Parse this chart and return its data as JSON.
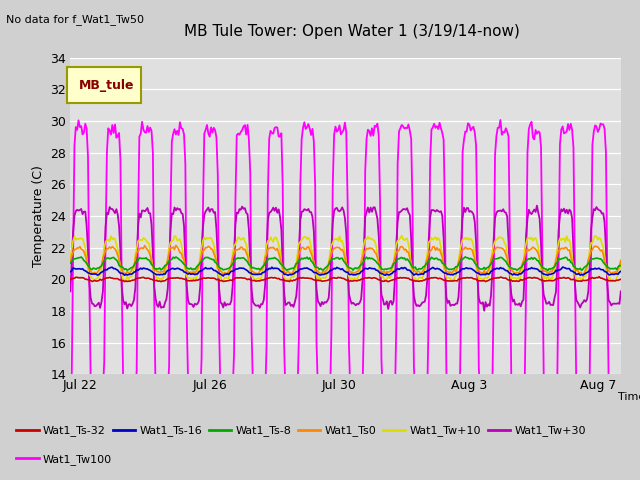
{
  "title": "MB Tule Tower: Open Water 1 (3/19/14-now)",
  "subtitle": "No data for f_Wat1_Tw50",
  "xlabel": "Time",
  "ylabel": "Temperature (C)",
  "ylim": [
    14,
    34
  ],
  "xlim": [
    0,
    17.0
  ],
  "x_ticks_pos": [
    0.3,
    4.3,
    8.3,
    12.3,
    16.3
  ],
  "x_tick_labels": [
    "Jul 22",
    "Jul 26",
    "Jul 30",
    "Aug 3",
    "Aug 7"
  ],
  "y_ticks": [
    14,
    16,
    18,
    20,
    22,
    24,
    26,
    28,
    30,
    32,
    34
  ],
  "bg_color": "#e0e0e0",
  "fig_color": "#d0d0d0",
  "legend_box_color": "#ffffcc",
  "legend_box_edge": "#999900",
  "legend_label": "MB_tule",
  "legend_label_color": "#880000",
  "series_colors": {
    "Wat1_Ts-32": "#cc0000",
    "Wat1_Ts-16": "#0000cc",
    "Wat1_Ts-8": "#00aa00",
    "Wat1_Ts0": "#ff8800",
    "Wat1_Tw+10": "#dddd00",
    "Wat1_Tw+30": "#bb00bb",
    "Wat1_Tw100": "#ff00ff"
  }
}
